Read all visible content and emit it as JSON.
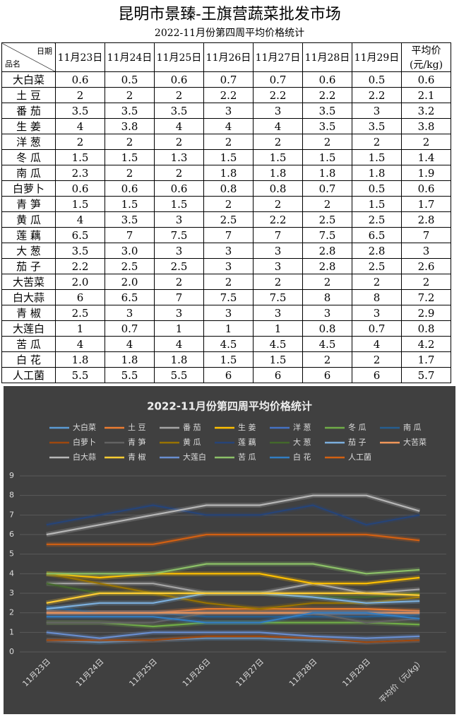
{
  "header": {
    "title": "昆明市景臻-王旗营蔬菜批发市场",
    "subtitle": "2022-11月份第四周平均价格统计"
  },
  "table": {
    "corner": {
      "top": "日期",
      "bottom": "品名"
    },
    "columns": [
      "11月23日",
      "11月24日",
      "11月25日",
      "11月26日",
      "11月27日",
      "11月28日",
      "11月29日"
    ],
    "avg_header": [
      "平均价",
      "(元/kg)"
    ],
    "rows": [
      [
        "大白菜",
        "0.6",
        "0.5",
        "0.6",
        "0.7",
        "0.7",
        "0.6",
        "0.5",
        "0.6"
      ],
      [
        "土 豆",
        "2",
        "2",
        "2",
        "2.2",
        "2.2",
        "2.2",
        "2.2",
        "2.1"
      ],
      [
        "番 茄",
        "3.5",
        "3.5",
        "3.5",
        "3",
        "3",
        "3.5",
        "3",
        "3.2"
      ],
      [
        "生 姜",
        "4",
        "3.8",
        "4",
        "4",
        "4",
        "3.5",
        "3.5",
        "3.8"
      ],
      [
        "洋 葱",
        "2",
        "2",
        "2",
        "2",
        "2",
        "2",
        "2",
        "2"
      ],
      [
        "冬 瓜",
        "1.5",
        "1.5",
        "1.3",
        "1.5",
        "1.5",
        "1.5",
        "1.5",
        "1.4"
      ],
      [
        "南 瓜",
        "2.3",
        "2",
        "2",
        "1.8",
        "1.8",
        "1.8",
        "1.8",
        "1.9"
      ],
      [
        "白萝卜",
        "0.6",
        "0.6",
        "0.6",
        "0.8",
        "0.8",
        "0.7",
        "0.5",
        "0.6"
      ],
      [
        "青 笋",
        "1.5",
        "1.5",
        "1.5",
        "2",
        "2",
        "2",
        "1.5",
        "1.7"
      ],
      [
        "黄 瓜",
        "4",
        "3.5",
        "3",
        "2.5",
        "2.2",
        "2.5",
        "2.5",
        "2.8"
      ],
      [
        "莲 藕",
        "6.5",
        "7",
        "7.5",
        "7",
        "7",
        "7.5",
        "6.5",
        "7"
      ],
      [
        "大 葱",
        "3.5",
        "3.0",
        "3",
        "3",
        "3",
        "2.8",
        "2.8",
        "3"
      ],
      [
        "茄 子",
        "2.2",
        "2.5",
        "2.5",
        "3",
        "3",
        "2.8",
        "2.5",
        "2.6"
      ],
      [
        "大苦菜",
        "2.0",
        "2.0",
        "2",
        "2",
        "2",
        "2",
        "2",
        "2"
      ],
      [
        "白大蒜",
        "6",
        "6.5",
        "7",
        "7.5",
        "7.5",
        "8",
        "8",
        "7.2"
      ],
      [
        "青 椒",
        "2.5",
        "3",
        "3",
        "3",
        "3",
        "3",
        "3",
        "2.9"
      ],
      [
        "大莲白",
        "1",
        "0.7",
        "1",
        "1",
        "1",
        "0.8",
        "0.7",
        "0.8"
      ],
      [
        "苦 瓜",
        "4",
        "4",
        "4",
        "4.5",
        "4.5",
        "4.5",
        "4",
        "4.2"
      ],
      [
        "白 花",
        "1.8",
        "1.8",
        "1.8",
        "1.5",
        "1.5",
        "2",
        "2",
        "1.7"
      ],
      [
        "人工菌",
        "5.5",
        "5.5",
        "5.5",
        "6",
        "6",
        "6",
        "6",
        "5.7"
      ]
    ]
  },
  "chart_data": {
    "type": "line",
    "title": "2022-11月份第四周平均价格统计",
    "categories": [
      "11月23日",
      "11月24日",
      "11月25日",
      "11月26日",
      "11月27日",
      "11月28日",
      "11月29日",
      "平均价（元/kg）"
    ],
    "ylim": [
      0,
      9
    ],
    "yticks": [
      0,
      1,
      2,
      3,
      4,
      5,
      6,
      7,
      8,
      9
    ],
    "grid": true,
    "legend": "top",
    "series": [
      {
        "name": "大白菜",
        "color": "#5b9bd5",
        "values": [
          0.6,
          0.5,
          0.6,
          0.7,
          0.7,
          0.6,
          0.5,
          0.6
        ]
      },
      {
        "name": "土 豆",
        "color": "#ed7d31",
        "values": [
          2,
          2,
          2,
          2.2,
          2.2,
          2.2,
          2.2,
          2.1
        ]
      },
      {
        "name": "番 茄",
        "color": "#a5a5a5",
        "values": [
          3.5,
          3.5,
          3.5,
          3,
          3,
          3.5,
          3,
          3.2
        ]
      },
      {
        "name": "生 姜",
        "color": "#ffc000",
        "values": [
          4,
          3.8,
          4,
          4,
          4,
          3.5,
          3.5,
          3.8
        ]
      },
      {
        "name": "洋 葱",
        "color": "#4472c4",
        "values": [
          2,
          2,
          2,
          2,
          2,
          2,
          2,
          2
        ]
      },
      {
        "name": "冬 瓜",
        "color": "#70ad47",
        "values": [
          1.5,
          1.5,
          1.3,
          1.5,
          1.5,
          1.5,
          1.5,
          1.4
        ]
      },
      {
        "name": "南 瓜",
        "color": "#255e91",
        "values": [
          2.3,
          2,
          2,
          1.8,
          1.8,
          1.8,
          1.8,
          1.9
        ]
      },
      {
        "name": "白萝卜",
        "color": "#9e480e",
        "values": [
          0.6,
          0.6,
          0.6,
          0.8,
          0.8,
          0.7,
          0.5,
          0.6
        ]
      },
      {
        "name": "青 笋",
        "color": "#636363",
        "values": [
          1.5,
          1.5,
          1.5,
          2,
          2,
          2,
          1.5,
          1.7
        ]
      },
      {
        "name": "黄 瓜",
        "color": "#997300",
        "values": [
          4,
          3.5,
          3,
          2.5,
          2.2,
          2.5,
          2.5,
          2.8
        ]
      },
      {
        "name": "莲 藕",
        "color": "#264478",
        "values": [
          6.5,
          7,
          7.5,
          7,
          7,
          7.5,
          6.5,
          7
        ]
      },
      {
        "name": "大 葱",
        "color": "#43682b",
        "values": [
          3.5,
          3,
          3,
          3,
          3,
          2.8,
          2.8,
          3
        ]
      },
      {
        "name": "茄 子",
        "color": "#7cafdd",
        "values": [
          2.2,
          2.5,
          2.5,
          3,
          3,
          2.8,
          2.5,
          2.6
        ]
      },
      {
        "name": "大苦菜",
        "color": "#f1975a",
        "values": [
          2,
          2,
          2,
          2,
          2,
          2,
          2,
          2
        ]
      },
      {
        "name": "白大蒜",
        "color": "#b7b7b7",
        "values": [
          6,
          6.5,
          7,
          7.5,
          7.5,
          8,
          8,
          7.2
        ]
      },
      {
        "name": "青 椒",
        "color": "#ffcd33",
        "values": [
          2.5,
          3,
          3,
          3,
          3,
          3,
          3,
          2.9
        ]
      },
      {
        "name": "大莲白",
        "color": "#698ed0",
        "values": [
          1,
          0.7,
          1,
          1,
          1,
          0.8,
          0.7,
          0.8
        ]
      },
      {
        "name": "苦 瓜",
        "color": "#8cc168",
        "values": [
          4,
          4,
          4,
          4.5,
          4.5,
          4.5,
          4,
          4.2
        ]
      },
      {
        "name": "白 花",
        "color": "#327dc2",
        "values": [
          1.8,
          1.8,
          1.8,
          1.5,
          1.5,
          2,
          2,
          1.7
        ]
      },
      {
        "name": "人工菌",
        "color": "#d26012",
        "values": [
          5.5,
          5.5,
          5.5,
          6,
          6,
          6,
          6,
          5.7
        ]
      }
    ]
  }
}
